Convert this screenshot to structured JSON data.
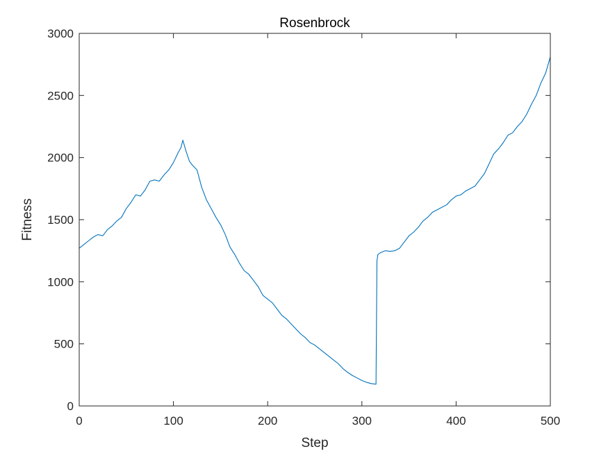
{
  "chart_data": {
    "type": "line",
    "title": "Rosenbrock",
    "xlabel": "Step",
    "ylabel": "Fitness",
    "xlim": [
      0,
      500
    ],
    "ylim": [
      0,
      3000
    ],
    "xticks": [
      0,
      100,
      200,
      300,
      400,
      500
    ],
    "yticks": [
      0,
      500,
      1000,
      1500,
      2000,
      2500,
      3000
    ],
    "grid": false,
    "line_color": "#0072BD",
    "series": [
      {
        "x": [
          0,
          5,
          10,
          15,
          20,
          25,
          30,
          35,
          40,
          45,
          50,
          55,
          60,
          65,
          70,
          75,
          80,
          85,
          90,
          95,
          100,
          105,
          108,
          110,
          113,
          117,
          120,
          125,
          130,
          135,
          140,
          145,
          150,
          155,
          160,
          165,
          170,
          175,
          180,
          185,
          190,
          195,
          200,
          205,
          210,
          215,
          220,
          225,
          230,
          235,
          240,
          245,
          250,
          255,
          260,
          265,
          270,
          275,
          280,
          285,
          290,
          295,
          300,
          305,
          310,
          315,
          316,
          317,
          320,
          325,
          330,
          335,
          340,
          345,
          350,
          355,
          360,
          365,
          370,
          375,
          380,
          385,
          390,
          395,
          400,
          405,
          410,
          415,
          420,
          425,
          430,
          435,
          440,
          445,
          450,
          455,
          460,
          465,
          470,
          475,
          480,
          485,
          490,
          495,
          500
        ],
        "y": [
          1270,
          1300,
          1330,
          1360,
          1380,
          1370,
          1420,
          1450,
          1490,
          1520,
          1590,
          1640,
          1700,
          1690,
          1740,
          1810,
          1820,
          1810,
          1860,
          1900,
          1960,
          2040,
          2080,
          2140,
          2060,
          1970,
          1940,
          1900,
          1760,
          1660,
          1590,
          1520,
          1460,
          1380,
          1280,
          1220,
          1150,
          1090,
          1060,
          1010,
          960,
          890,
          860,
          830,
          780,
          730,
          700,
          660,
          620,
          580,
          550,
          510,
          490,
          460,
          430,
          400,
          370,
          340,
          300,
          270,
          245,
          225,
          205,
          190,
          180,
          175,
          1170,
          1220,
          1235,
          1250,
          1245,
          1250,
          1270,
          1320,
          1370,
          1400,
          1440,
          1490,
          1520,
          1560,
          1580,
          1600,
          1620,
          1660,
          1690,
          1700,
          1730,
          1750,
          1770,
          1820,
          1870,
          1950,
          2030,
          2070,
          2120,
          2180,
          2200,
          2250,
          2290,
          2350,
          2430,
          2500,
          2600,
          2680,
          2810
        ]
      }
    ]
  }
}
